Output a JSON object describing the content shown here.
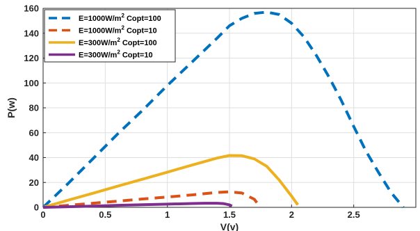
{
  "chart_data": {
    "type": "line",
    "title": "",
    "xlabel": "V(v)",
    "ylabel": "P(w)",
    "xlim": [
      0,
      3
    ],
    "ylim": [
      0,
      160
    ],
    "xticks": [
      0,
      0.5,
      1,
      1.5,
      2,
      2.5
    ],
    "xtick_labels": [
      "0",
      "0.5",
      "1",
      "1.5",
      "2",
      "2.5"
    ],
    "yticks": [
      0,
      20,
      40,
      60,
      80,
      100,
      120,
      140,
      160
    ],
    "ytick_labels": [
      "0",
      "20",
      "40",
      "60",
      "80",
      "100",
      "120",
      "140",
      "160"
    ],
    "grid": true,
    "legend_position": "top-left",
    "series": [
      {
        "name": "E=1000W/m² Copt=100",
        "legend_base": "E=1000W/m",
        "legend_sup": "2",
        "legend_rest": " Copt=100",
        "color": "#0072BD",
        "dash": "dashed",
        "x": [
          0,
          0.2,
          0.4,
          0.6,
          0.8,
          1.0,
          1.2,
          1.4,
          1.5,
          1.6,
          1.7,
          1.8,
          1.9,
          2.0,
          2.1,
          2.2,
          2.3,
          2.4,
          2.5,
          2.6,
          2.7,
          2.8,
          2.9
        ],
        "y": [
          0,
          19,
          39,
          59,
          78,
          98,
          117,
          136,
          146,
          152,
          156,
          157,
          155,
          148,
          137,
          122,
          105,
          86,
          65,
          45,
          28,
          12,
          0
        ]
      },
      {
        "name": "E=1000W/m² Copt=10",
        "legend_base": "E=1000W/m",
        "legend_sup": "2",
        "legend_rest": " Copt=10",
        "color": "#D95319",
        "dash": "dashed",
        "x": [
          0,
          0.2,
          0.4,
          0.6,
          0.8,
          1.0,
          1.2,
          1.4,
          1.5,
          1.6,
          1.7,
          1.75
        ],
        "y": [
          0,
          1.6,
          3.3,
          5.0,
          6.7,
          8.3,
          10.0,
          12.0,
          12.5,
          11.5,
          6.5,
          0
        ]
      },
      {
        "name": "E=300W/m² Copt=100",
        "legend_base": "E=300W/m",
        "legend_sup": "2",
        "legend_rest": " Copt=100",
        "color": "#EDB120",
        "dash": "solid",
        "x": [
          0,
          0.2,
          0.4,
          0.6,
          0.8,
          1.0,
          1.2,
          1.4,
          1.5,
          1.6,
          1.7,
          1.8,
          1.9,
          2.0,
          2.05
        ],
        "y": [
          0,
          5.7,
          11.3,
          17,
          22.6,
          28.3,
          34,
          39.6,
          41.7,
          41.5,
          39,
          33,
          22,
          9,
          2
        ]
      },
      {
        "name": "E=300W/m² Copt=10",
        "legend_base": "E=300W/m",
        "legend_sup": "2",
        "legend_rest": " Copt=10",
        "color": "#7E2F8E",
        "dash": "solid",
        "x": [
          0,
          0.2,
          0.4,
          0.6,
          0.8,
          1.0,
          1.2,
          1.3,
          1.4,
          1.45,
          1.5,
          1.52
        ],
        "y": [
          0,
          0.5,
          1.0,
          1.6,
          2.1,
          2.6,
          3.1,
          3.3,
          3.3,
          3.0,
          2.0,
          1.0
        ]
      }
    ]
  }
}
